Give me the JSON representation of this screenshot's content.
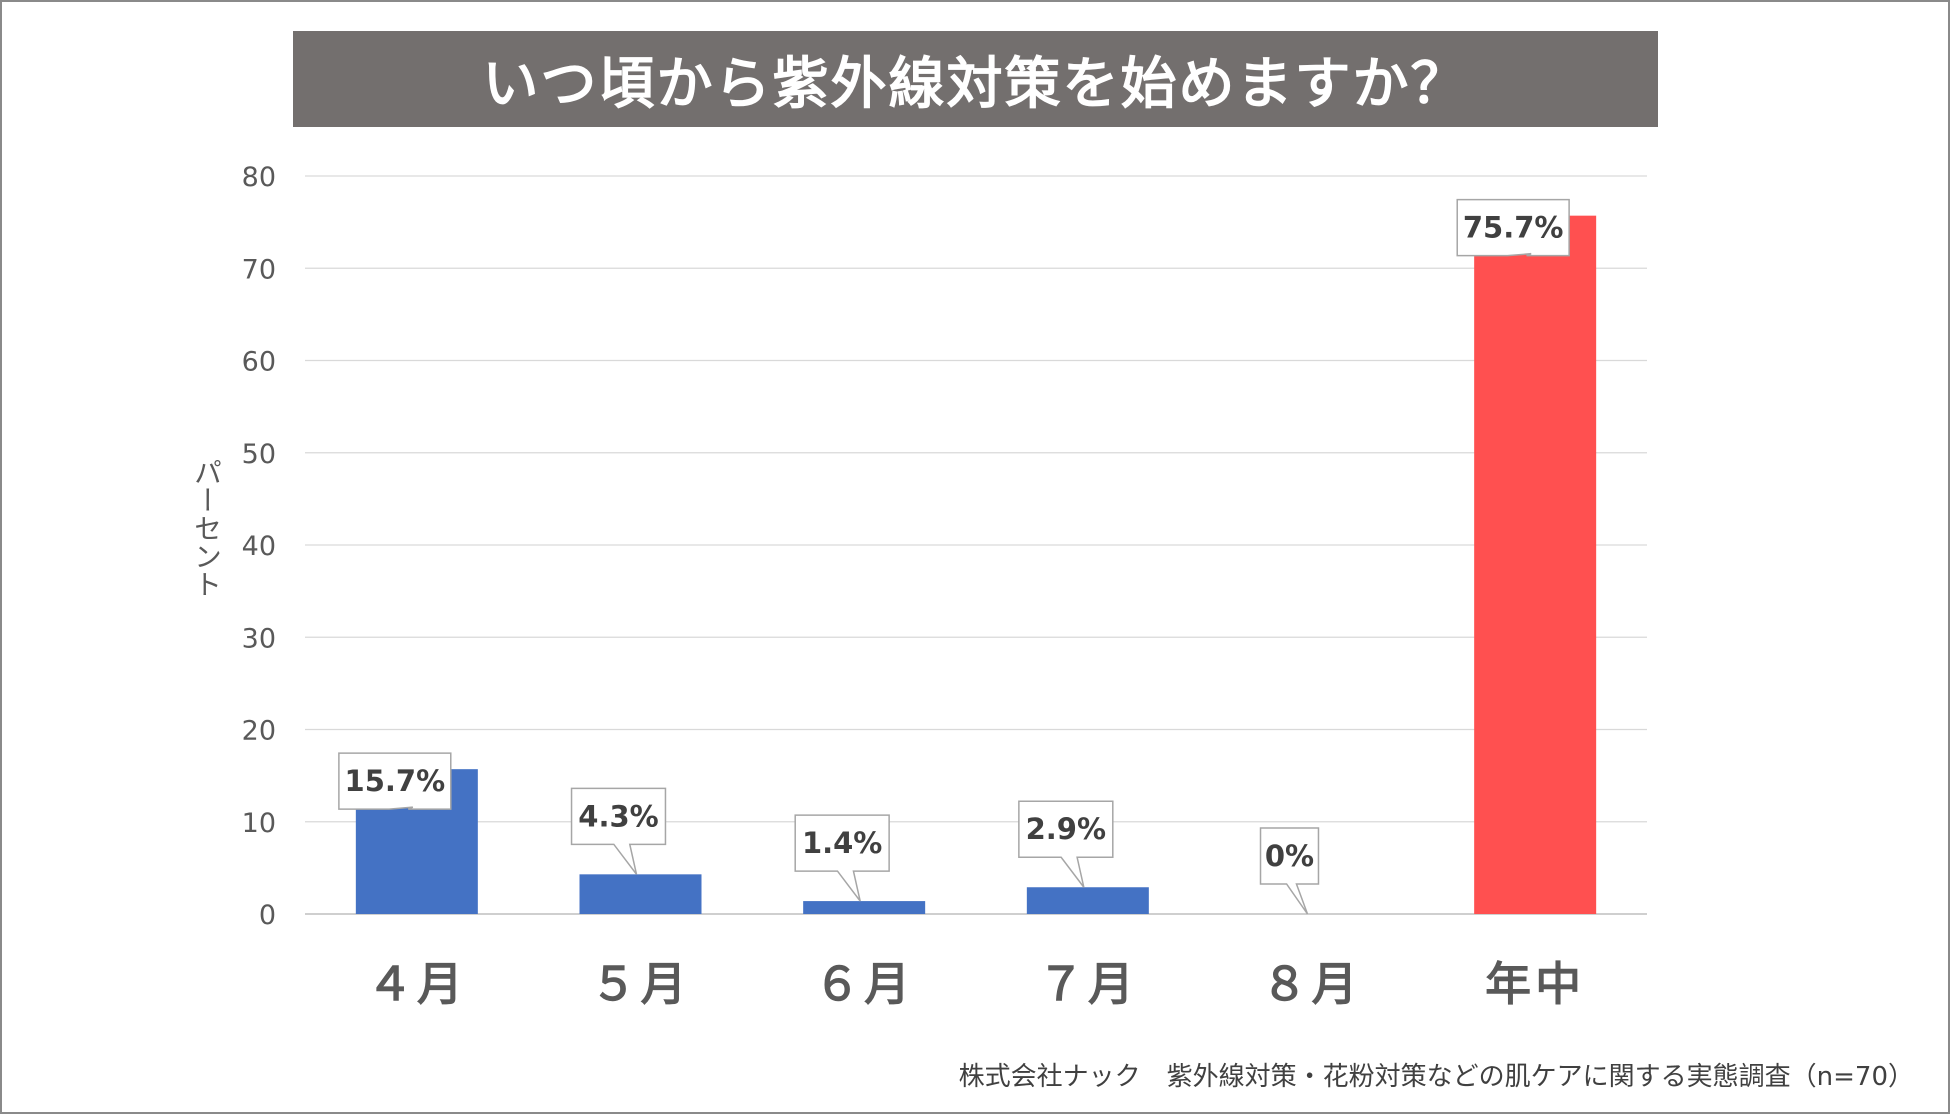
{
  "title": "いつ頃から紫外線対策を始めますか？",
  "source": "株式会社ナック　紫外線対策・花粉対策などの肌ケアに関する実態調査（n=70）",
  "chart_data": {
    "type": "bar",
    "title": "いつ頃から紫外線対策を始めますか？",
    "xlabel": "",
    "ylabel": "パーセント",
    "ylim": [
      0,
      80
    ],
    "yticks": [
      0,
      10,
      20,
      30,
      40,
      50,
      60,
      70,
      80
    ],
    "grid": true,
    "categories": [
      "４月",
      "５月",
      "６月",
      "７月",
      "８月",
      "年中"
    ],
    "values": [
      15.7,
      4.3,
      1.4,
      2.9,
      0,
      75.7
    ],
    "data_labels": [
      "15.7%",
      "4.3%",
      "1.4%",
      "2.9%",
      "0%",
      "75.7%"
    ],
    "colors": [
      "#4472c4",
      "#4472c4",
      "#4472c4",
      "#4472c4",
      "#4472c4",
      "#ff5050"
    ]
  }
}
